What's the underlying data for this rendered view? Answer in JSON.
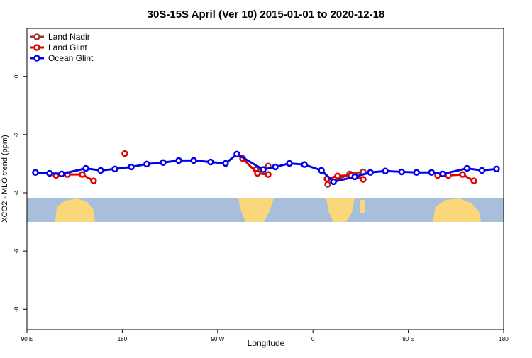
{
  "chart_data": {
    "type": "line",
    "title": "30S-15S April (Ver 10)   2015-01-01 to 2020-12-18",
    "xlabel": "Longitude",
    "ylabel": "XCO2 - MLO trend (ppm)",
    "xlim": [
      90,
      540
    ],
    "ylim": [
      -8.7,
      1.65
    ],
    "xticks": [
      {
        "value": 90,
        "label": "90 E"
      },
      {
        "value": 180,
        "label": "180"
      },
      {
        "value": 270,
        "label": "90 W"
      },
      {
        "value": 360,
        "label": "0"
      },
      {
        "value": 450,
        "label": "90 E"
      },
      {
        "value": 540,
        "label": "180"
      }
    ],
    "yticks": [
      0,
      -2,
      -4,
      -6,
      -8
    ],
    "legend": "top-left",
    "series": [
      {
        "name": "Land Nadir",
        "color": "#a0302c",
        "x": [
          306.3,
          317.7,
          null,
          373.9,
          394.7,
          407.4
        ],
        "values": [
          -3.2,
          -3.08,
          null,
          -3.71,
          -3.35,
          -3.28
        ]
      },
      {
        "name": "Land Glint",
        "color": "#e00000",
        "x": [
          117.5,
          128.2,
          142.2,
          152.9,
          null,
          182.4,
          null,
          293.6,
          307.6,
          317.7,
          null,
          373.3,
          383.3,
          396,
          407.4,
          null,
          477.7,
          487.8,
          501.2,
          511.9
        ],
        "values": [
          -3.4,
          -3.37,
          -3.37,
          -3.59,
          null,
          -2.65,
          null,
          -2.82,
          -3.33,
          -3.37,
          null,
          -3.52,
          -3.42,
          -3.4,
          -3.54,
          null,
          -3.4,
          -3.4,
          -3.37,
          -3.59
        ]
      },
      {
        "name": "Ocean Glint",
        "color": "#0000ee",
        "x": [
          98,
          111.4,
          122.8,
          145.6,
          159.6,
          173,
          188.4,
          203.1,
          218.6,
          233.3,
          247.4,
          263.4,
          277.5,
          288.2,
          313,
          324.4,
          337.8,
          351.9,
          368,
          379.4,
          399.5,
          414.2,
          428.3,
          443.7,
          457.8,
          471.9,
          482.6,
          505.4,
          519.5,
          533.3
        ],
        "values": [
          -3.3,
          -3.33,
          -3.35,
          -3.16,
          -3.23,
          -3.18,
          -3.11,
          -3.01,
          -2.96,
          -2.89,
          -2.89,
          -2.94,
          -2.99,
          -2.67,
          -3.2,
          -3.11,
          -2.99,
          -3.03,
          -3.23,
          -3.62,
          -3.45,
          -3.3,
          -3.25,
          -3.28,
          -3.3,
          -3.3,
          -3.35,
          -3.16,
          -3.23,
          -3.18
        ]
      }
    ]
  }
}
